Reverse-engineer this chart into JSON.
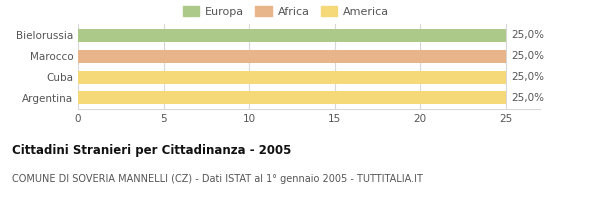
{
  "categories": [
    "Bielorussia",
    "Marocco",
    "Cuba",
    "Argentina"
  ],
  "values": [
    25,
    25,
    25,
    25
  ],
  "bar_colors": [
    "#adc98a",
    "#e8b48a",
    "#f5d878",
    "#f5d878"
  ],
  "legend_labels": [
    "Europa",
    "Africa",
    "America"
  ],
  "legend_colors": [
    "#adc98a",
    "#e8b48a",
    "#f5d878"
  ],
  "bar_labels": [
    "25,0%",
    "25,0%",
    "25,0%",
    "25,0%"
  ],
  "xlim": [
    0,
    27
  ],
  "xticks": [
    0,
    5,
    10,
    15,
    20,
    25
  ],
  "title_bold": "Cittadini Stranieri per Cittadinanza - 2005",
  "subtitle": "COMUNE DI SOVERIA MANNELLI (CZ) - Dati ISTAT al 1° gennaio 2005 - TUTTITALIA.IT",
  "background_color": "#ffffff",
  "grid_color": "#d8d8d8",
  "bar_height": 0.62,
  "title_fontsize": 8.5,
  "subtitle_fontsize": 7,
  "label_fontsize": 7.5,
  "tick_fontsize": 7.5,
  "legend_fontsize": 8
}
